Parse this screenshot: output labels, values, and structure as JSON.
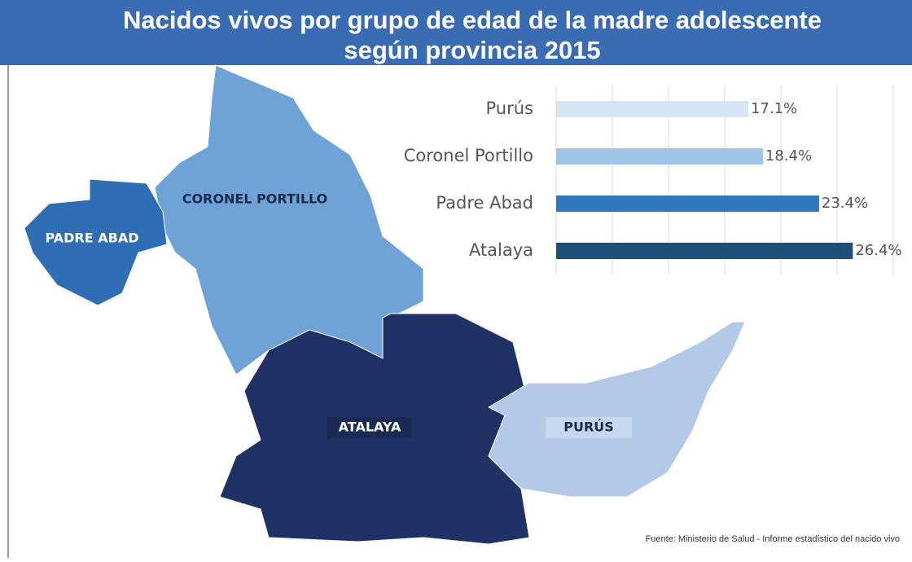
{
  "title": [
    "Nacidos vivos por grupo de edad de la madre adolescente",
    "según provincia 2015"
  ],
  "map": {
    "regions": [
      {
        "name": "CORONEL PORTILLO"
      },
      {
        "name": "PADRE ABAD"
      },
      {
        "name": "ATALAYA"
      },
      {
        "name": "PURÚS"
      }
    ]
  },
  "chart_data": {
    "type": "bar",
    "orientation": "horizontal",
    "categories": [
      "Purús",
      "Coronel Portillo",
      "Padre Abad",
      "Atalaya"
    ],
    "values": [
      17.1,
      18.4,
      23.4,
      26.4
    ],
    "value_labels": [
      "17.1%",
      "18.4%",
      "23.4%",
      "26.4%"
    ],
    "colors": [
      "#d6e4f4",
      "#9fc4e8",
      "#2f78be",
      "#1f4e79"
    ],
    "xlim": [
      0,
      30
    ],
    "xticks": [
      0,
      5,
      10,
      15,
      20,
      25,
      30
    ],
    "grid": true
  },
  "source": "Fuente: Ministerio de Salud - Informe estadístico del nacido vivo"
}
